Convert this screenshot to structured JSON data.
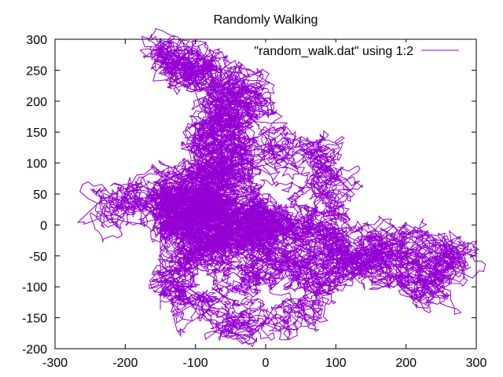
{
  "chart_data": {
    "type": "line",
    "title": "Randomly Walking",
    "xlabel": "",
    "ylabel": "",
    "xlim": [
      -300,
      300
    ],
    "ylim": [
      -200,
      300
    ],
    "x_ticks": [
      -300,
      -200,
      -100,
      0,
      100,
      200,
      300
    ],
    "y_ticks": [
      -200,
      -150,
      -100,
      -50,
      0,
      50,
      100,
      150,
      200,
      250,
      300
    ],
    "x_tick_labels": [
      "-300",
      "-200",
      "-100",
      "0",
      "100",
      "200",
      "300"
    ],
    "y_tick_labels": [
      "-200",
      "-150",
      "-100",
      "-50",
      "0",
      "50",
      "100",
      "150",
      "200",
      "250",
      "300"
    ],
    "grid": false,
    "legend_position": "top-right",
    "series": [
      {
        "name": "\"random_walk.dat\" using 1:2",
        "color": "#9400d3",
        "style": "dense random-walk path",
        "x": [
          0,
          -40,
          -90,
          -150,
          -230,
          -140,
          -70,
          -40,
          -65,
          -35,
          -20,
          -60,
          -140,
          -120,
          -80,
          -60,
          -90,
          -75,
          -140,
          -100,
          -30,
          10,
          60,
          110,
          90,
          70,
          0,
          -60,
          -110,
          -130,
          -40,
          50,
          120,
          160,
          220,
          275,
          240,
          220,
          160,
          100,
          70,
          20,
          -20,
          0
        ],
        "y": [
          0,
          30,
          40,
          20,
          20,
          60,
          90,
          130,
          160,
          200,
          200,
          240,
          280,
          250,
          240,
          180,
          130,
          80,
          40,
          -40,
          -20,
          -60,
          -80,
          -20,
          80,
          110,
          120,
          60,
          -60,
          -110,
          -170,
          -140,
          -60,
          -30,
          -40,
          -45,
          -80,
          -95,
          -60,
          -40,
          -15,
          10,
          -10,
          0
        ]
      }
    ]
  }
}
